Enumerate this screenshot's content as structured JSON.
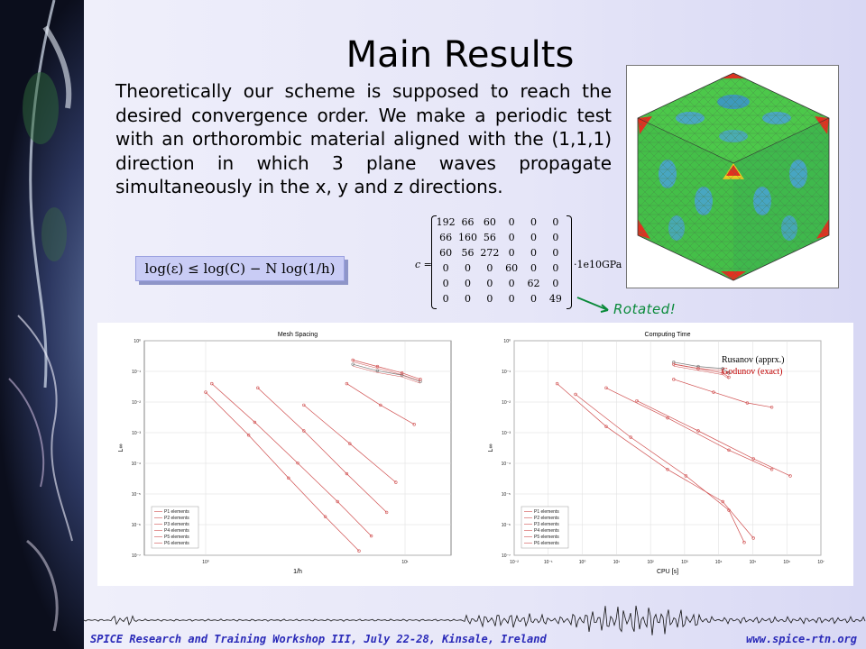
{
  "slide": {
    "title": "Main Results",
    "body": "Theoretically our scheme is supposed to reach the desired convergence order. We make a periodic test with an orthorombic material aligned with the (1,1,1) direction in which 3 plane waves propagate simultaneously in the x, y and z directions.",
    "formula": "log(ε) ≤ log(C) − N log(1/h)",
    "matrix": {
      "label": "c =",
      "unit": "·1e10GPa",
      "rows": [
        [
          "192",
          "66",
          "60",
          "0",
          "0",
          "0"
        ],
        [
          "66",
          "160",
          "56",
          "0",
          "0",
          "0"
        ],
        [
          "60",
          "56",
          "272",
          "0",
          "0",
          "0"
        ],
        [
          "0",
          "0",
          "0",
          "60",
          "0",
          "0"
        ],
        [
          "0",
          "0",
          "0",
          "0",
          "62",
          "0"
        ],
        [
          "0",
          "0",
          "0",
          "0",
          "0",
          "49"
        ]
      ]
    },
    "rotated_label": "Rotated!",
    "footer_left": "SPICE Research and Training Workshop III, July 22-28, Kinsale, Ireland",
    "footer_right": "www.spice-rtn.org",
    "colors": {
      "footer": "#2a2ab8",
      "rotated": "#0a8a3a",
      "godunov": "#c00000"
    }
  },
  "chart_data": [
    {
      "type": "line",
      "title": "Mesh Spacing",
      "xlabel": "1/h",
      "ylabel": "L∞",
      "xscale": "log",
      "yscale": "log",
      "x_tick_labels": [
        "10⁰",
        "10¹"
      ],
      "y_tick_labels": [
        "10⁰",
        "10⁻¹",
        "10⁻²",
        "10⁻³",
        "10⁻⁴",
        "10⁻⁵",
        "10⁻⁶",
        "10⁻⁷"
      ],
      "legend": [
        "P1 elements",
        "P2 elements",
        "P3 elements",
        "P4 elements",
        "P5 elements",
        "P6 elements"
      ],
      "legend_position": "bottom-left",
      "grid": true
    },
    {
      "type": "line",
      "title": "Computing Time",
      "xlabel": "CPU [s]",
      "ylabel": "L∞",
      "xscale": "log",
      "yscale": "log",
      "x_tick_labels": [
        "10⁻²",
        "10⁻¹",
        "10⁰",
        "10¹",
        "10²",
        "10³",
        "10⁴",
        "10⁵",
        "10⁶",
        "10⁷"
      ],
      "y_tick_labels": [
        "10⁰",
        "10⁻¹",
        "10⁻²",
        "10⁻³",
        "10⁻⁴",
        "10⁻⁵",
        "10⁻⁶",
        "10⁻⁷"
      ],
      "legend": [
        "P1 elements",
        "P2 elements",
        "P3 elements",
        "P4 elements",
        "P5 elements",
        "P6 elements"
      ],
      "legend_position": "bottom-left",
      "annotations": [
        "Rusanov (apprx.)",
        "Godunov (exact)"
      ],
      "grid": true
    }
  ]
}
